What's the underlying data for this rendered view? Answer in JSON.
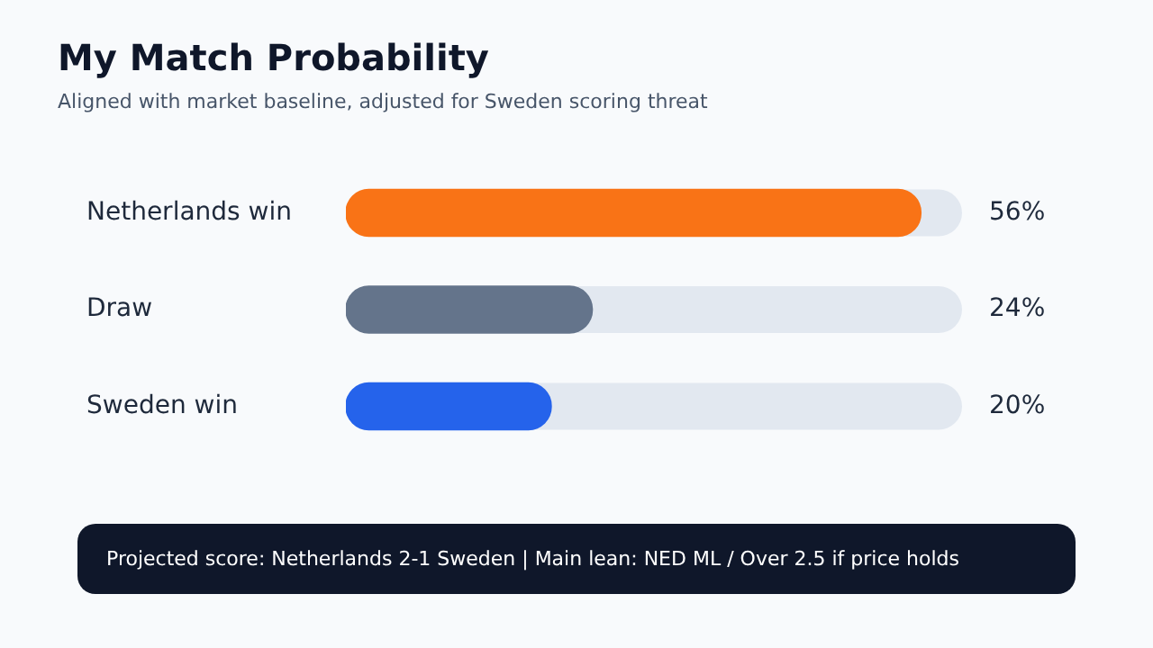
{
  "chart_data": {
    "type": "bar",
    "orientation": "horizontal",
    "title": "My Match Probability",
    "subtitle": "Aligned with market baseline, adjusted for Sweden scoring threat",
    "categories": [
      "Netherlands win",
      "Draw",
      "Sweden win"
    ],
    "values": [
      56,
      24,
      20
    ],
    "colors": [
      "#f97316",
      "#64748b",
      "#2563eb"
    ],
    "value_labels": [
      "56%",
      "24%",
      "20%"
    ],
    "tick_labels": "y",
    "grid": false,
    "legend": false,
    "annotations": [
      "Projected score: Netherlands 2-1 Sweden | Main lean: NED ML / Over 2.5 if price holds"
    ]
  }
}
